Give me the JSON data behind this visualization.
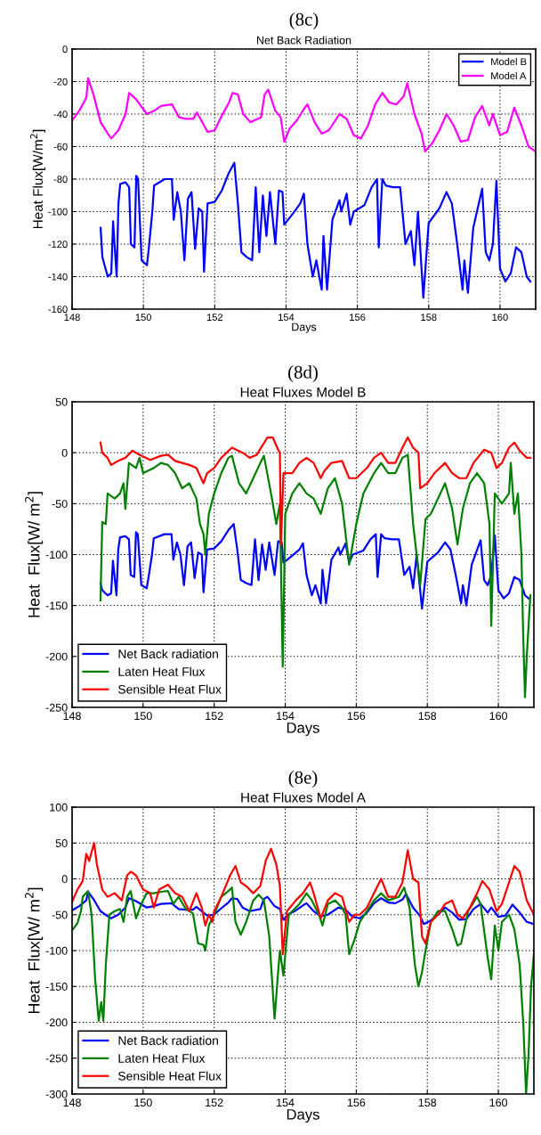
{
  "chart_data": [
    {
      "type": "line",
      "title": "(8c)",
      "subtitle": "Net Back Radiation",
      "xlabel": "Days",
      "ylabel": "Heat Flux[W/m$^{2}$]",
      "xlim": [
        148,
        161
      ],
      "xticks": [
        148,
        150,
        152,
        154,
        156,
        158,
        160
      ],
      "ylim": [
        -160,
        0
      ],
      "yticks": [
        -160,
        -140,
        -120,
        -100,
        -80,
        -60,
        -40,
        -20,
        0
      ],
      "grid": true,
      "legend": "top right",
      "series": [
        {
          "name": "Model B",
          "color": "#0000ff",
          "x": [
            148.8,
            148.85,
            149.0,
            149.1,
            149.15,
            149.25,
            149.3,
            149.35,
            149.5,
            149.6,
            149.65,
            149.75,
            149.8,
            149.85,
            149.95,
            150.1,
            150.15,
            150.25,
            150.3,
            150.6,
            150.8,
            150.85,
            150.95,
            151.05,
            151.15,
            151.25,
            151.35,
            151.45,
            151.55,
            151.65,
            151.7,
            151.8,
            152.0,
            152.2,
            152.4,
            152.55,
            152.65,
            152.75,
            152.9,
            153.05,
            153.15,
            153.25,
            153.35,
            153.45,
            153.55,
            153.7,
            153.8,
            153.9,
            153.95,
            154.2,
            154.4,
            154.5,
            154.6,
            154.75,
            154.85,
            155.0,
            155.05,
            155.15,
            155.3,
            155.5,
            155.55,
            155.7,
            155.8,
            155.9,
            156.2,
            156.4,
            156.55,
            156.6,
            156.7,
            156.8,
            157.0,
            157.2,
            157.35,
            157.5,
            157.6,
            157.7,
            157.85,
            158.0,
            158.3,
            158.5,
            158.65,
            158.8,
            158.95,
            159.0,
            159.1,
            159.25,
            159.5,
            159.6,
            159.7,
            159.8,
            159.9,
            160.0,
            160.15,
            160.3,
            160.45,
            160.6,
            160.75,
            160.85
          ],
          "values": [
            -110,
            -128,
            -140,
            -138,
            -106,
            -140,
            -95,
            -83,
            -82,
            -85,
            -120,
            -122,
            -78,
            -80,
            -130,
            -133,
            -123,
            -100,
            -84,
            -80,
            -80,
            -105,
            -88,
            -100,
            -130,
            -92,
            -88,
            -123,
            -98,
            -100,
            -137,
            -95,
            -94,
            -87,
            -76,
            -70,
            -95,
            -125,
            -128,
            -130,
            -85,
            -125,
            -90,
            -115,
            -88,
            -120,
            -87,
            -88,
            -108,
            -101,
            -95,
            -89,
            -120,
            -140,
            -130,
            -148,
            -115,
            -148,
            -105,
            -93,
            -100,
            -89,
            -108,
            -100,
            -96,
            -85,
            -80,
            -122,
            -80,
            -84,
            -85,
            -85,
            -120,
            -112,
            -133,
            -100,
            -153,
            -107,
            -98,
            -88,
            -95,
            -120,
            -148,
            -130,
            -150,
            -110,
            -86,
            -125,
            -130,
            -120,
            -81,
            -135,
            -143,
            -138,
            -122,
            -125,
            -140,
            -143
          ]
        },
        {
          "name": "Model A",
          "color": "#ff00ff",
          "x": [
            148.0,
            148.2,
            148.4,
            148.45,
            148.6,
            148.8,
            149.0,
            149.1,
            149.3,
            149.5,
            149.6,
            149.8,
            150.0,
            150.1,
            150.3,
            150.5,
            150.8,
            151.0,
            151.2,
            151.4,
            151.5,
            151.7,
            151.8,
            152.0,
            152.2,
            152.4,
            152.5,
            152.65,
            152.8,
            153.0,
            153.2,
            153.3,
            153.4,
            153.5,
            153.7,
            153.85,
            153.95,
            154.1,
            154.3,
            154.5,
            154.6,
            154.8,
            155.0,
            155.2,
            155.5,
            155.7,
            155.9,
            156.1,
            156.3,
            156.5,
            156.7,
            156.9,
            157.1,
            157.3,
            157.4,
            157.6,
            157.8,
            157.9,
            158.1,
            158.3,
            158.5,
            158.7,
            158.9,
            159.1,
            159.3,
            159.5,
            159.7,
            159.8,
            160.0,
            160.2,
            160.4,
            160.6,
            160.8,
            161.0
          ],
          "values": [
            -44,
            -38,
            -30,
            -18,
            -28,
            -45,
            -52,
            -55,
            -50,
            -40,
            -27,
            -31,
            -37,
            -40,
            -38,
            -35,
            -34,
            -42,
            -43,
            -43,
            -39,
            -47,
            -51,
            -50,
            -41,
            -33,
            -27,
            -28,
            -40,
            -45,
            -43,
            -42,
            -28,
            -25,
            -38,
            -42,
            -57,
            -49,
            -44,
            -37,
            -34,
            -45,
            -52,
            -50,
            -40,
            -43,
            -53,
            -55,
            -47,
            -34,
            -27,
            -33,
            -34,
            -29,
            -21,
            -40,
            -52,
            -63,
            -58,
            -50,
            -40,
            -47,
            -57,
            -56,
            -42,
            -35,
            -47,
            -40,
            -53,
            -51,
            -36,
            -47,
            -60,
            -63
          ]
        }
      ]
    },
    {
      "type": "line",
      "title": "(8d)",
      "subtitle": "Heat Fluxes Model B",
      "xlabel": "Days",
      "ylabel": "Heat  Flux[W/ m$^{2}$]",
      "xlim": [
        148,
        161
      ],
      "xticks": [
        148,
        150,
        152,
        154,
        156,
        158,
        160
      ],
      "ylim": [
        -250,
        50
      ],
      "yticks": [
        -250,
        -200,
        -150,
        -100,
        -50,
        0,
        50
      ],
      "grid": true,
      "legend": "bottom left",
      "series": [
        {
          "name": "Net Back radiation",
          "color": "#0000ff",
          "x": [
            148.8,
            148.85,
            149.0,
            149.1,
            149.15,
            149.25,
            149.3,
            149.35,
            149.5,
            149.6,
            149.65,
            149.75,
            149.8,
            149.85,
            149.95,
            150.1,
            150.15,
            150.25,
            150.3,
            150.6,
            150.8,
            150.85,
            150.95,
            151.05,
            151.15,
            151.25,
            151.35,
            151.45,
            151.55,
            151.65,
            151.7,
            151.8,
            152.0,
            152.2,
            152.4,
            152.55,
            152.65,
            152.75,
            152.9,
            153.05,
            153.15,
            153.25,
            153.35,
            153.45,
            153.55,
            153.7,
            153.8,
            153.9,
            153.95,
            154.2,
            154.4,
            154.5,
            154.6,
            154.75,
            154.85,
            155.0,
            155.05,
            155.15,
            155.3,
            155.5,
            155.55,
            155.7,
            155.8,
            155.9,
            156.2,
            156.4,
            156.55,
            156.6,
            156.7,
            156.8,
            157.0,
            157.2,
            157.35,
            157.5,
            157.6,
            157.7,
            157.85,
            158.0,
            158.3,
            158.5,
            158.65,
            158.8,
            158.95,
            159.0,
            159.1,
            159.25,
            159.5,
            159.6,
            159.7,
            159.8,
            159.9,
            160.0,
            160.15,
            160.3,
            160.45,
            160.6,
            160.75,
            160.85
          ],
          "values": [
            -128,
            -135,
            -140,
            -138,
            -106,
            -140,
            -95,
            -83,
            -82,
            -85,
            -120,
            -122,
            -78,
            -80,
            -130,
            -133,
            -123,
            -100,
            -84,
            -80,
            -80,
            -105,
            -88,
            -100,
            -130,
            -92,
            -88,
            -123,
            -98,
            -100,
            -137,
            -95,
            -94,
            -87,
            -76,
            -70,
            -95,
            -125,
            -128,
            -130,
            -85,
            -125,
            -90,
            -115,
            -88,
            -120,
            -87,
            -88,
            -108,
            -101,
            -95,
            -89,
            -120,
            -140,
            -130,
            -148,
            -115,
            -148,
            -105,
            -93,
            -100,
            -89,
            -108,
            -100,
            -96,
            -85,
            -80,
            -122,
            -80,
            -84,
            -85,
            -85,
            -120,
            -112,
            -133,
            -100,
            -153,
            -107,
            -98,
            -88,
            -95,
            -120,
            -148,
            -130,
            -150,
            -110,
            -86,
            -125,
            -130,
            -120,
            -81,
            -135,
            -143,
            -138,
            -122,
            -125,
            -140,
            -143
          ]
        },
        {
          "name": "Laten Heat Flux",
          "color": "#008000",
          "x": [
            148.8,
            148.85,
            148.95,
            149.0,
            149.2,
            149.35,
            149.45,
            149.5,
            149.6,
            149.8,
            149.9,
            150.0,
            150.3,
            150.5,
            150.7,
            150.9,
            151.1,
            151.3,
            151.5,
            151.6,
            151.7,
            151.75,
            151.85,
            152.0,
            152.2,
            152.4,
            152.5,
            152.7,
            152.9,
            153.1,
            153.3,
            153.4,
            153.6,
            153.75,
            153.85,
            153.93,
            154.0,
            154.2,
            154.4,
            154.6,
            154.8,
            155.0,
            155.2,
            155.4,
            155.6,
            155.8,
            156.0,
            156.2,
            156.5,
            156.7,
            156.9,
            157.1,
            157.3,
            157.45,
            157.6,
            157.8,
            157.95,
            158.1,
            158.3,
            158.5,
            158.7,
            158.85,
            159.0,
            159.2,
            159.4,
            159.6,
            159.75,
            159.8,
            159.9,
            160.1,
            160.3,
            160.35,
            160.45,
            160.55,
            160.65,
            160.7,
            160.75,
            160.8,
            160.9
          ],
          "values": [
            -145,
            -68,
            -70,
            -40,
            -45,
            -40,
            -30,
            -55,
            -10,
            -15,
            -5,
            -20,
            -15,
            -10,
            -12,
            -20,
            -35,
            -30,
            -45,
            -70,
            -80,
            -100,
            -60,
            -40,
            -20,
            -5,
            -3,
            -30,
            -40,
            -25,
            -10,
            -3,
            -40,
            -70,
            -50,
            -210,
            -60,
            -40,
            -30,
            -40,
            -45,
            -60,
            -35,
            -25,
            -50,
            -110,
            -70,
            -40,
            -20,
            -10,
            -20,
            -20,
            -5,
            -2,
            -70,
            -130,
            -65,
            -60,
            -45,
            -30,
            -55,
            -90,
            -55,
            -30,
            -20,
            -30,
            -70,
            -170,
            -40,
            -50,
            -40,
            -10,
            -60,
            -40,
            -100,
            -180,
            -240,
            -200,
            -140
          ]
        },
        {
          "name": "Sensible Heat Flux",
          "color": "#ff0000",
          "x": [
            148.8,
            148.85,
            149.0,
            149.1,
            149.3,
            149.5,
            149.7,
            149.9,
            150.2,
            150.5,
            150.7,
            150.9,
            151.1,
            151.3,
            151.5,
            151.7,
            151.8,
            152.0,
            152.2,
            152.5,
            152.8,
            153.0,
            153.2,
            153.5,
            153.65,
            153.8,
            153.85,
            153.88,
            153.95,
            154.2,
            154.4,
            154.6,
            154.8,
            155.0,
            155.1,
            155.3,
            155.6,
            155.8,
            156.0,
            156.3,
            156.5,
            156.7,
            156.9,
            157.1,
            157.3,
            157.45,
            157.6,
            157.75,
            157.8,
            158.0,
            158.2,
            158.5,
            158.7,
            158.9,
            159.1,
            159.3,
            159.6,
            159.8,
            159.95,
            160.1,
            160.3,
            160.45,
            160.6,
            160.8,
            160.9
          ],
          "values": [
            10,
            0,
            -5,
            -12,
            -8,
            -5,
            2,
            -2,
            -7,
            -3,
            -2,
            -8,
            -10,
            -12,
            -15,
            -30,
            -20,
            -15,
            -5,
            5,
            0,
            -5,
            -2,
            15,
            15,
            3,
            0,
            -90,
            -20,
            -20,
            -10,
            -5,
            -10,
            -25,
            -18,
            -10,
            -8,
            -25,
            -25,
            -15,
            -5,
            0,
            -10,
            -10,
            5,
            15,
            5,
            0,
            -35,
            -30,
            -20,
            -10,
            -20,
            -25,
            -25,
            -10,
            3,
            0,
            -15,
            -10,
            5,
            10,
            2,
            -5,
            -5
          ]
        }
      ]
    },
    {
      "type": "line",
      "title": "(8e)",
      "subtitle": "Heat Fluxes Model A",
      "xlabel": "Days",
      "ylabel": "Heat  Flux[W/ m$^{2}$]",
      "xlim": [
        148,
        161
      ],
      "xticks": [
        148,
        150,
        152,
        154,
        156,
        158,
        160
      ],
      "ylim": [
        -300,
        100
      ],
      "yticks": [
        -300,
        -250,
        -200,
        -150,
        -100,
        -50,
        0,
        50,
        100
      ],
      "grid": true,
      "legend": "bottom left",
      "series": [
        {
          "name": "Net Back radiation",
          "color": "#0000ff",
          "x": [
            148.0,
            148.2,
            148.4,
            148.45,
            148.6,
            148.8,
            149.0,
            149.1,
            149.3,
            149.5,
            149.6,
            149.8,
            150.0,
            150.1,
            150.3,
            150.5,
            150.8,
            151.0,
            151.2,
            151.4,
            151.5,
            151.7,
            151.8,
            152.0,
            152.2,
            152.4,
            152.5,
            152.65,
            152.8,
            153.0,
            153.2,
            153.3,
            153.4,
            153.5,
            153.7,
            153.85,
            153.95,
            154.1,
            154.3,
            154.5,
            154.6,
            154.8,
            155.0,
            155.2,
            155.5,
            155.7,
            155.9,
            156.1,
            156.3,
            156.5,
            156.7,
            156.9,
            157.1,
            157.3,
            157.4,
            157.6,
            157.8,
            157.9,
            158.1,
            158.3,
            158.5,
            158.7,
            158.9,
            159.1,
            159.3,
            159.5,
            159.7,
            159.8,
            160.0,
            160.2,
            160.4,
            160.6,
            160.8,
            161.0
          ],
          "values": [
            -44,
            -38,
            -30,
            -18,
            -28,
            -45,
            -52,
            -55,
            -50,
            -40,
            -27,
            -31,
            -37,
            -40,
            -38,
            -35,
            -34,
            -42,
            -43,
            -43,
            -39,
            -47,
            -51,
            -50,
            -41,
            -33,
            -27,
            -28,
            -40,
            -45,
            -43,
            -42,
            -28,
            -25,
            -38,
            -42,
            -57,
            -49,
            -44,
            -37,
            -34,
            -45,
            -52,
            -50,
            -40,
            -43,
            -53,
            -55,
            -47,
            -34,
            -27,
            -33,
            -34,
            -29,
            -21,
            -40,
            -52,
            -63,
            -58,
            -50,
            -40,
            -47,
            -57,
            -56,
            -42,
            -35,
            -47,
            -40,
            -53,
            -51,
            -36,
            -47,
            -60,
            -63
          ]
        },
        {
          "name": "Laten Heat Flux",
          "color": "#008000",
          "x": [
            148.0,
            148.15,
            148.25,
            148.3,
            148.45,
            148.55,
            148.65,
            148.75,
            148.82,
            148.88,
            148.95,
            149.05,
            149.2,
            149.35,
            149.45,
            149.55,
            149.65,
            149.8,
            149.95,
            150.1,
            150.3,
            150.5,
            150.7,
            150.85,
            151.0,
            151.2,
            151.4,
            151.55,
            151.7,
            151.75,
            151.85,
            152.0,
            152.2,
            152.4,
            152.5,
            152.6,
            152.75,
            152.9,
            153.1,
            153.25,
            153.4,
            153.55,
            153.7,
            153.8,
            153.85,
            153.95,
            154.1,
            154.4,
            154.6,
            154.75,
            154.95,
            155.05,
            155.2,
            155.4,
            155.6,
            155.7,
            155.8,
            155.95,
            156.1,
            156.3,
            156.5,
            156.7,
            156.9,
            157.2,
            157.35,
            157.5,
            157.65,
            157.75,
            157.85,
            157.95,
            158.1,
            158.3,
            158.5,
            158.7,
            158.85,
            158.95,
            159.15,
            159.4,
            159.5,
            159.7,
            159.8,
            159.9,
            160.0,
            160.1,
            160.3,
            160.45,
            160.6,
            160.7,
            160.78,
            160.85,
            160.92,
            161.0
          ],
          "values": [
            -72,
            -62,
            -45,
            -25,
            -17,
            -50,
            -140,
            -198,
            -172,
            -198,
            -120,
            -50,
            -45,
            -42,
            -60,
            -25,
            -17,
            -55,
            -35,
            -20,
            -20,
            -18,
            -17,
            -35,
            -25,
            -42,
            -48,
            -90,
            -92,
            -100,
            -65,
            -50,
            -25,
            -17,
            -12,
            -60,
            -78,
            -60,
            -30,
            -22,
            -30,
            -80,
            -195,
            -130,
            -100,
            -135,
            -50,
            -35,
            -20,
            -30,
            -50,
            -65,
            -35,
            -30,
            -40,
            -50,
            -105,
            -85,
            -60,
            -45,
            -30,
            -20,
            -30,
            -25,
            -12,
            -40,
            -120,
            -150,
            -130,
            -100,
            -60,
            -45,
            -45,
            -70,
            -93,
            -90,
            -45,
            -25,
            -35,
            -110,
            -140,
            -65,
            -100,
            -60,
            -50,
            -70,
            -120,
            -200,
            -300,
            -245,
            -150,
            -105
          ]
        },
        {
          "name": "Sensible Heat Flux",
          "color": "#ff0000",
          "x": [
            148.0,
            148.15,
            148.3,
            148.4,
            148.48,
            148.62,
            148.7,
            148.85,
            149.0,
            149.2,
            149.4,
            149.55,
            149.65,
            149.8,
            150.0,
            150.2,
            150.3,
            150.45,
            150.7,
            150.9,
            151.1,
            151.3,
            151.5,
            151.65,
            151.75,
            151.85,
            151.95,
            152.0,
            152.2,
            152.45,
            152.6,
            152.75,
            152.9,
            153.1,
            153.3,
            153.45,
            153.6,
            153.75,
            153.85,
            153.93,
            154.05,
            154.3,
            154.5,
            154.7,
            154.8,
            155.0,
            155.2,
            155.4,
            155.6,
            155.8,
            155.95,
            156.1,
            156.3,
            156.5,
            156.7,
            156.9,
            157.1,
            157.3,
            157.45,
            157.6,
            157.75,
            157.85,
            157.95,
            158.1,
            158.3,
            158.5,
            158.7,
            158.85,
            159.0,
            159.2,
            159.4,
            159.55,
            159.75,
            159.95,
            160.1,
            160.3,
            160.45,
            160.6,
            160.8,
            160.95,
            161.0
          ],
          "values": [
            -32,
            -15,
            -3,
            35,
            25,
            50,
            20,
            -15,
            -25,
            -20,
            -30,
            5,
            10,
            5,
            -15,
            -20,
            -40,
            -15,
            -8,
            -20,
            -25,
            -45,
            -20,
            -40,
            -65,
            -50,
            -60,
            -45,
            -25,
            5,
            18,
            -5,
            -10,
            -20,
            -10,
            25,
            42,
            20,
            -10,
            -105,
            -45,
            -30,
            -20,
            -5,
            -20,
            -55,
            -30,
            -20,
            -25,
            -60,
            -50,
            -50,
            -40,
            -20,
            0,
            -25,
            -25,
            -5,
            40,
            0,
            -5,
            -80,
            -90,
            -60,
            -50,
            -35,
            -30,
            -50,
            -55,
            -40,
            -20,
            -3,
            -15,
            -45,
            -35,
            -5,
            18,
            10,
            -30,
            -45,
            -50
          ]
        }
      ]
    }
  ]
}
